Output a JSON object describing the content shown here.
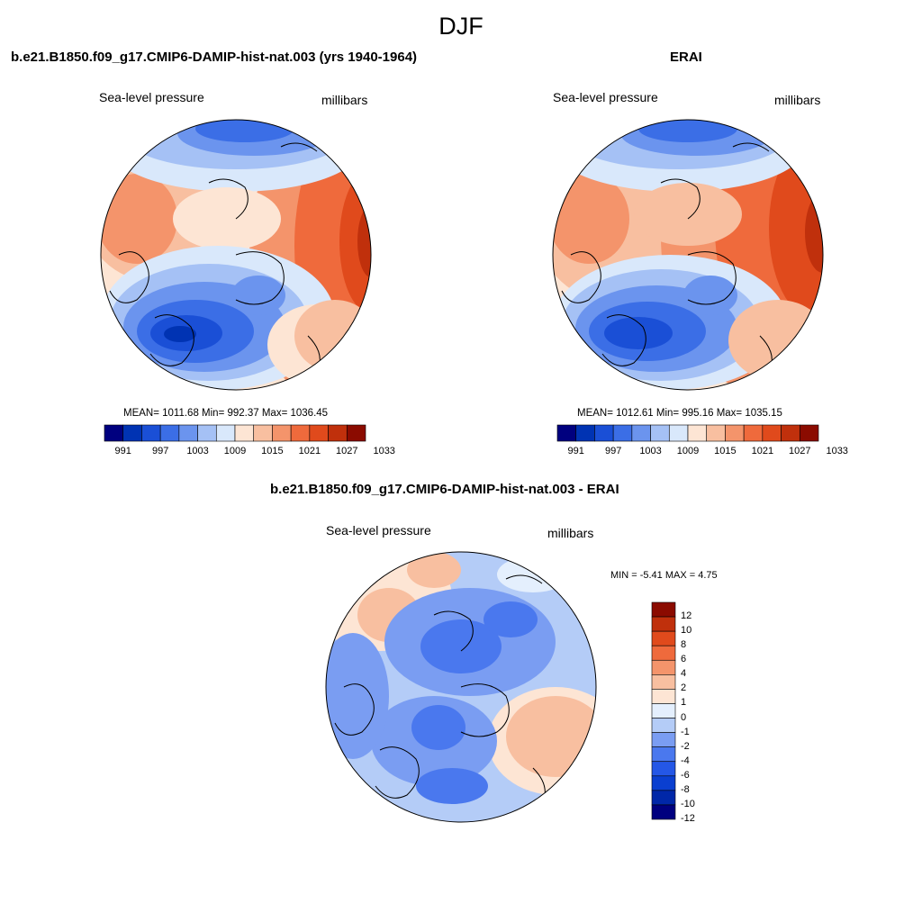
{
  "page": {
    "title": "DJF"
  },
  "panels": [
    {
      "id": "model",
      "title": "b.e21.B1850.f09_g17.CMIP6-DAMIP-hist-nat.003 (yrs 1940-1964)",
      "left_label": "Sea-level pressure",
      "right_label": "millibars",
      "stats": "MEAN= 1011.68  Min= 992.37  Max= 1036.45"
    },
    {
      "id": "obs",
      "title": "ERAI",
      "left_label": "Sea-level pressure",
      "right_label": "millibars",
      "stats": "MEAN= 1012.61  Min= 995.16  Max= 1035.15"
    },
    {
      "id": "diff",
      "title": "b.e21.B1850.f09_g17.CMIP6-DAMIP-hist-nat.003 - ERAI",
      "left_label": "Sea-level pressure",
      "right_label": "millibars",
      "stats": "MIN =  -5.41 MAX =   4.75"
    }
  ],
  "colorbars": {
    "abs": {
      "colors": [
        "#00007f",
        "#0033b3",
        "#1a4fd6",
        "#3b6ee6",
        "#6b94ee",
        "#a5c1f5",
        "#d9e8fb",
        "#fde5d4",
        "#f8bfa0",
        "#f4946b",
        "#ef6a3c",
        "#e04a1c",
        "#c0300c",
        "#8b0b00"
      ],
      "tick_labels": [
        "991",
        "997",
        "1003",
        "1009",
        "1015",
        "1021",
        "1027",
        "1033"
      ]
    },
    "diff": {
      "colors": [
        "#00007f",
        "#0027a8",
        "#0a3fd0",
        "#2457e6",
        "#4a78ee",
        "#7a9df2",
        "#b4ccf7",
        "#e4effd",
        "#fde5d4",
        "#f8bfa0",
        "#f4946b",
        "#ef6a3c",
        "#e04a1c",
        "#c0300c",
        "#8b0b00"
      ],
      "tick_labels": [
        "12",
        "10",
        "8",
        "6",
        "4",
        "2",
        "1",
        "0",
        "-1",
        "-2",
        "-4",
        "-6",
        "-8",
        "-10",
        "-12"
      ]
    }
  }
}
